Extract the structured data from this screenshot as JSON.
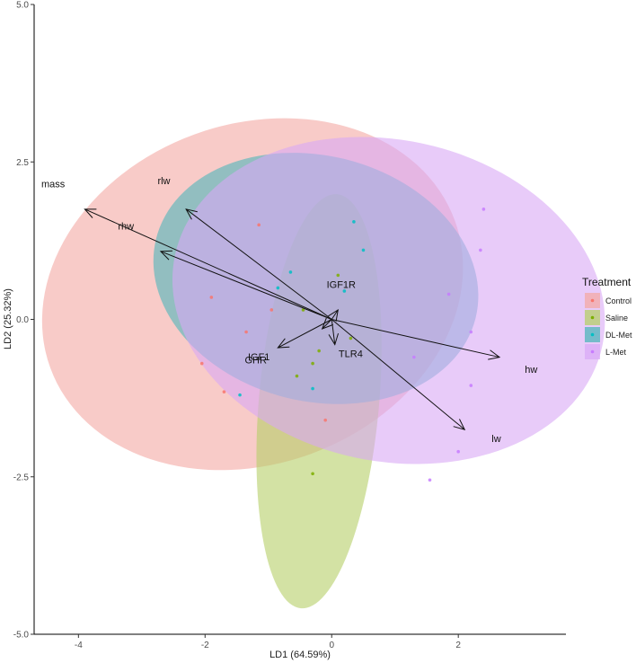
{
  "chart_data": {
    "type": "scatter",
    "xlabel": "LD1 (64.59%)",
    "ylabel": "LD2 (25.32%)",
    "xlim": [
      -4.7,
      3.7
    ],
    "ylim": [
      -5.0,
      5.0
    ],
    "x_ticks": [
      -4,
      -2,
      0,
      2
    ],
    "y_ticks": [
      -5.0,
      -2.5,
      0.0,
      2.5,
      5.0
    ],
    "x_tick_labels": [
      "-4",
      "-2",
      "0",
      "2"
    ],
    "y_tick_labels": [
      "-5.0",
      "-2.5",
      "0.0",
      "2.5",
      "5.0"
    ],
    "grid": false,
    "legend": {
      "title": "Treatment",
      "placement": "right",
      "entries": [
        "Control",
        "Saline",
        "DL-Met",
        "L-Met"
      ]
    },
    "series": [
      {
        "name": "Control",
        "color": "#F8766D",
        "fill": "#F4A9A4",
        "ellipse": {
          "center": [
            -1.25,
            0.4
          ],
          "rx": 3.4,
          "ry": 2.7,
          "angle": -20
        },
        "points": [
          [
            -1.15,
            1.5
          ],
          [
            -1.9,
            0.35
          ],
          [
            -2.05,
            -0.7
          ],
          [
            -1.35,
            -0.2
          ],
          [
            -0.95,
            0.15
          ],
          [
            -0.1,
            -1.6
          ],
          [
            -1.7,
            -1.15
          ]
        ]
      },
      {
        "name": "Saline",
        "color": "#7CAE00",
        "fill": "#B5CF68",
        "ellipse": {
          "center": [
            -0.2,
            -1.3
          ],
          "rx": 0.95,
          "ry": 3.3,
          "angle": 5
        },
        "points": [
          [
            -0.3,
            -2.45
          ],
          [
            -0.45,
            0.15
          ],
          [
            -0.2,
            -0.5
          ],
          [
            -0.55,
            -0.9
          ],
          [
            0.1,
            0.7
          ],
          [
            0.3,
            -0.3
          ],
          [
            -0.3,
            -0.7
          ]
        ]
      },
      {
        "name": "DL-Met",
        "color": "#00BFC4",
        "fill": "#4FB6BA",
        "ellipse": {
          "center": [
            -0.25,
            0.65
          ],
          "rx": 2.6,
          "ry": 1.95,
          "angle": 14
        },
        "points": [
          [
            -1.45,
            -1.2
          ],
          [
            0.35,
            1.55
          ],
          [
            0.5,
            1.1
          ],
          [
            -0.85,
            0.5
          ],
          [
            -0.65,
            0.75
          ],
          [
            0.2,
            0.45
          ],
          [
            -0.3,
            -1.1
          ]
        ]
      },
      {
        "name": "L-Met",
        "color": "#C77CFF",
        "fill": "#D9A9F5",
        "ellipse": {
          "center": [
            0.9,
            0.3
          ],
          "rx": 3.45,
          "ry": 2.55,
          "angle": 12
        },
        "points": [
          [
            2.4,
            1.75
          ],
          [
            2.35,
            1.1
          ],
          [
            1.85,
            0.4
          ],
          [
            2.2,
            -0.2
          ],
          [
            2.2,
            -1.05
          ],
          [
            2.0,
            -2.1
          ],
          [
            1.55,
            -2.55
          ],
          [
            1.3,
            -0.6
          ]
        ]
      }
    ],
    "loadings": [
      {
        "name": "mass",
        "x": -3.9,
        "y": 1.75
      },
      {
        "name": "rlw",
        "x": -2.3,
        "y": 1.75
      },
      {
        "name": "rhw",
        "x": -2.7,
        "y": 1.08
      },
      {
        "name": "IGF1R",
        "x": 0.1,
        "y": 0.15
      },
      {
        "name": "GHR",
        "x": -0.85,
        "y": -0.45
      },
      {
        "name": "TLR4",
        "x": 0.05,
        "y": -0.4
      },
      {
        "name": "IGF1",
        "x": -0.15,
        "y": -0.15
      },
      {
        "name": "hw",
        "x": 2.65,
        "y": -0.6
      },
      {
        "name": "lw",
        "x": 2.1,
        "y": -1.75
      }
    ],
    "loading_label_offsets": {
      "mass": [
        -0.5,
        0.35
      ],
      "rlw": [
        -0.35,
        0.4
      ],
      "rhw": [
        -0.55,
        0.35
      ],
      "IGF1R": [
        0.05,
        0.35
      ],
      "GHR": [
        -0.35,
        -0.25
      ],
      "TLR4": [
        0.25,
        -0.2
      ],
      "IGF1": [
        -1.0,
        -0.5
      ],
      "hw": [
        0.5,
        -0.25
      ],
      "lw": [
        0.5,
        -0.2
      ]
    }
  }
}
